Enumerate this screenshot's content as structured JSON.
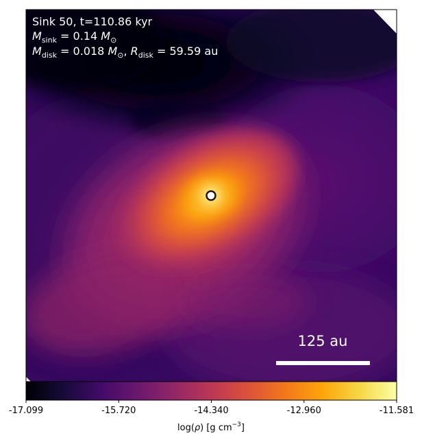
{
  "overlay": {
    "title_line": "Sink 50, t=110.86 kyr",
    "sink_mass": {
      "var": "M",
      "sub": "sink",
      "value": "0.14",
      "unit_main": "M",
      "unit_sub": "⊙"
    },
    "disk_mass": {
      "var": "M",
      "sub": "disk",
      "value": "0.018",
      "unit_main": "M",
      "unit_sub": "⊙"
    },
    "disk_radius": {
      "var": "R",
      "sub": "disk",
      "value": "59.59",
      "unit": "au"
    }
  },
  "scalebar": {
    "label": "125 au"
  },
  "colorbar": {
    "colormap": "inferno",
    "ticks": [
      "-17.099",
      "-15.720",
      "-14.340",
      "-12.960",
      "-11.581"
    ],
    "label": "log(ρ) [g cm⁻³]",
    "label_parts": {
      "pre": "log(",
      "rho": "ρ",
      "post": ") [g cm",
      "exp": "−3",
      "end": "]"
    },
    "min": -17.099,
    "max": -11.581
  },
  "colors": {
    "text": "#ffffff",
    "sink_marker_fill": "#ffffff",
    "sink_marker_edge": "#1a1a1a",
    "axes_frame": "#000000"
  }
}
